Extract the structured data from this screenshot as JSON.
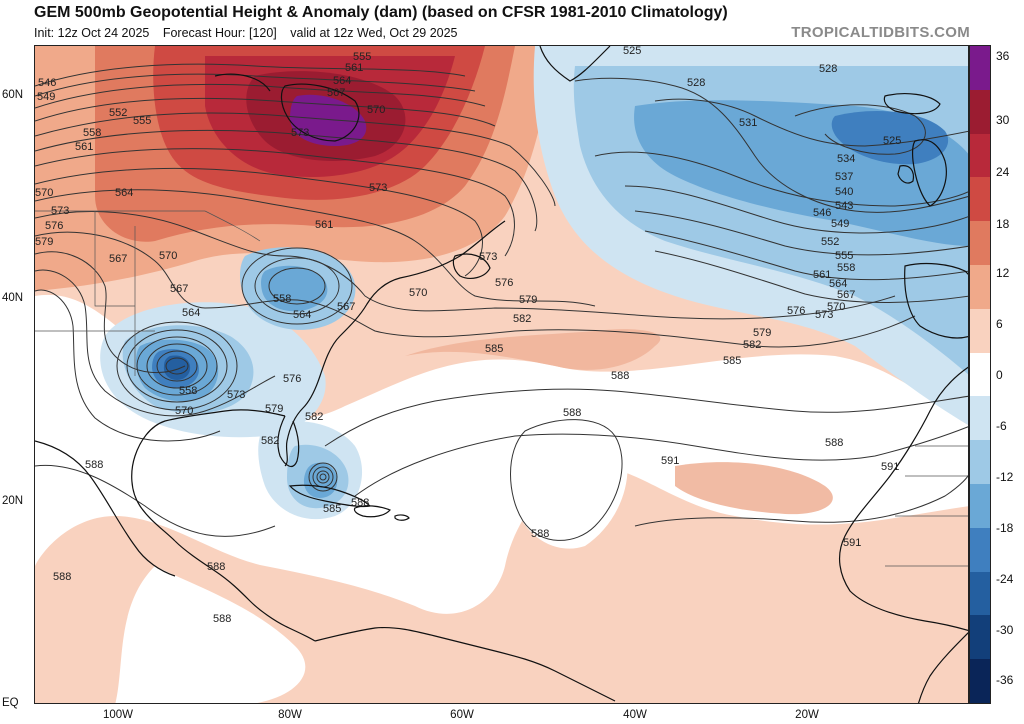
{
  "header": {
    "title": "GEM 500mb Geopotential Height & Anomaly (dam) (based on CFSR 1981-2010 Climatology)",
    "init": "Init: 12z Oct 24 2025",
    "forecast_hour": "Forecast Hour: [120]",
    "valid": "valid at 12z Wed, Oct 29 2025",
    "brand": "TROPICALTIDBITS.COM"
  },
  "axes": {
    "lat_labels": [
      "60N",
      "40N",
      "20N",
      "EQ"
    ],
    "lon_labels": [
      "100W",
      "80W",
      "60W",
      "40W",
      "20W"
    ]
  },
  "colorbar": {
    "labels": [
      "36",
      "30",
      "24",
      "18",
      "12",
      "6",
      "0",
      "-6",
      "-12",
      "-18",
      "-24",
      "-30",
      "-36"
    ],
    "colors": [
      "#7a1a8c",
      "#9b1c31",
      "#b8293a",
      "#cf4a43",
      "#e07a5f",
      "#f0a98a",
      "#f9d2bf",
      "#ffffff",
      "#cfe4f2",
      "#9ec9e6",
      "#6aa8d6",
      "#3f7fbf",
      "#245fa0",
      "#123f7a",
      "#0a2558"
    ]
  },
  "contour_labels": [
    "546",
    "549",
    "552",
    "555",
    "558",
    "561",
    "564",
    "567",
    "570",
    "573",
    "576",
    "579",
    "582",
    "585",
    "588",
    "591",
    "525",
    "528",
    "531",
    "534",
    "537",
    "540",
    "543"
  ],
  "colors": {
    "contour": "#333333",
    "coast": "#111111",
    "border": "#666666"
  }
}
